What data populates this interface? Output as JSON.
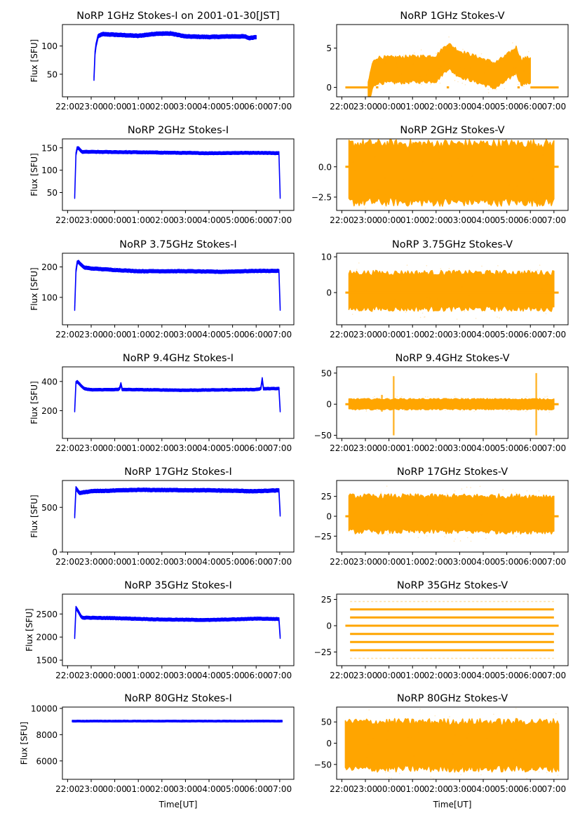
{
  "figure": {
    "title_suffix": "",
    "x_tick_labels": [
      "22:00",
      "23:00",
      "00:00",
      "01:00",
      "02:00",
      "03:00",
      "04:00",
      "05:00",
      "06:00",
      "07:00"
    ],
    "x_label": "Time[UT]",
    "y_label": "Flux [SFU]"
  },
  "chart_data": [
    {
      "id": "1ghz-i",
      "type": "scatter",
      "title": "NoRP 1GHz Stokes-I on 2001-01-30[JST]",
      "ylabel": "Flux [SFU]",
      "xlabel": "",
      "color": "#0000ff",
      "xlim_hours": [
        21.78,
        31.6
      ],
      "ylim": [
        10,
        138
      ],
      "yticks": [
        50,
        100
      ],
      "ytick_labels": [
        "50",
        "100"
      ],
      "trace": [
        [
          23.12,
          42
        ],
        [
          23.14,
          80
        ],
        [
          23.2,
          100
        ],
        [
          23.3,
          118
        ],
        [
          23.5,
          121
        ],
        [
          24,
          120
        ],
        [
          25,
          118
        ],
        [
          25.8,
          122
        ],
        [
          26.4,
          122
        ],
        [
          27,
          117
        ],
        [
          28,
          116
        ],
        [
          29,
          117
        ],
        [
          29.5,
          117
        ],
        [
          29.7,
          114
        ],
        [
          30,
          116
        ]
      ],
      "band": 3
    },
    {
      "id": "1ghz-v",
      "type": "scatter",
      "title": "NoRP 1GHz Stokes-V",
      "ylabel": "",
      "xlabel": "",
      "color": "#ffa500",
      "xlim_hours": [
        21.78,
        31.6
      ],
      "ylim": [
        -1.2,
        8
      ],
      "yticks": [
        0,
        5
      ],
      "ytick_labels": [
        "0",
        "5"
      ],
      "trace": [
        [
          23.12,
          -1
        ],
        [
          23.3,
          1.5
        ],
        [
          23.5,
          2.2
        ],
        [
          24,
          2.2
        ],
        [
          25,
          2.3
        ],
        [
          26,
          2.4
        ],
        [
          26.5,
          4
        ],
        [
          27,
          3
        ],
        [
          28,
          2
        ],
        [
          28.5,
          1.5
        ],
        [
          29,
          2.5
        ],
        [
          29.4,
          3.5
        ],
        [
          29.6,
          2
        ],
        [
          30,
          2.2
        ]
      ],
      "band": 1.6,
      "flat_segments": [
        [
          22.15,
          23.1,
          0
        ],
        [
          23.45,
          23.55,
          0
        ],
        [
          26.45,
          26.55,
          0
        ],
        [
          29.45,
          29.55,
          0
        ],
        [
          30,
          31.2,
          0
        ]
      ]
    },
    {
      "id": "2ghz-i",
      "type": "scatter",
      "title": "NoRP 2GHz Stokes-I",
      "ylabel": "Flux [SFU]",
      "xlabel": "",
      "color": "#0000ff",
      "xlim_hours": [
        21.78,
        31.6
      ],
      "ylim": [
        10,
        170
      ],
      "yticks": [
        50,
        100,
        150
      ],
      "ytick_labels": [
        "50",
        "100",
        "150"
      ],
      "trace": [
        [
          22.3,
          40
        ],
        [
          22.32,
          60
        ],
        [
          22.36,
          148
        ],
        [
          22.45,
          150
        ],
        [
          22.6,
          141
        ],
        [
          23,
          141
        ],
        [
          25,
          140
        ],
        [
          28,
          138
        ],
        [
          30,
          139
        ],
        [
          31,
          138
        ],
        [
          31.02,
          40
        ]
      ],
      "band": 3
    },
    {
      "id": "2ghz-v",
      "type": "scatter",
      "title": "NoRP 2GHz Stokes-V",
      "ylabel": "",
      "xlabel": "",
      "color": "#ffa500",
      "xlim_hours": [
        21.78,
        31.6
      ],
      "ylim": [
        -3.6,
        2.3
      ],
      "yticks": [
        -2.5,
        0.0
      ],
      "ytick_labels": [
        "−2.5",
        "0.0"
      ],
      "trace": [
        [
          22.3,
          -0.5
        ],
        [
          31,
          -0.5
        ]
      ],
      "band": 2.4,
      "flat_segments": [
        [
          22.15,
          31.2,
          0
        ]
      ]
    },
    {
      "id": "375ghz-i",
      "type": "scatter",
      "title": "NoRP 3.75GHz Stokes-I",
      "ylabel": "Flux [SFU]",
      "xlabel": "",
      "color": "#0000ff",
      "xlim_hours": [
        21.78,
        31.6
      ],
      "ylim": [
        10,
        245
      ],
      "yticks": [
        100,
        200
      ],
      "ytick_labels": [
        "100",
        "200"
      ],
      "trace": [
        [
          22.3,
          62
        ],
        [
          22.33,
          80
        ],
        [
          22.36,
          210
        ],
        [
          22.45,
          217
        ],
        [
          22.7,
          198
        ],
        [
          23,
          195
        ],
        [
          24,
          190
        ],
        [
          25,
          186
        ],
        [
          27,
          186
        ],
        [
          28.5,
          184
        ],
        [
          30,
          187
        ],
        [
          31,
          187
        ],
        [
          31.02,
          62
        ]
      ],
      "band": 5
    },
    {
      "id": "375ghz-v",
      "type": "scatter",
      "title": "NoRP 3.75GHz Stokes-V",
      "ylabel": "",
      "xlabel": "",
      "color": "#ffa500",
      "xlim_hours": [
        21.78,
        31.6
      ],
      "ylim": [
        -9,
        11
      ],
      "yticks": [
        0,
        10
      ],
      "ytick_labels": [
        "0",
        "10"
      ],
      "trace": [
        [
          22.3,
          0.5
        ],
        [
          31,
          0.5
        ]
      ],
      "band": 5,
      "flat_segments": [
        [
          22.15,
          31.2,
          0
        ]
      ]
    },
    {
      "id": "94ghz-i",
      "type": "scatter",
      "title": "NoRP 9.4GHz Stokes-I",
      "ylabel": "Flux [SFU]",
      "xlabel": "",
      "color": "#0000ff",
      "xlim_hours": [
        21.78,
        31.6
      ],
      "ylim": [
        10,
        500
      ],
      "yticks": [
        200,
        400
      ],
      "ytick_labels": [
        "200",
        "400"
      ],
      "trace": [
        [
          22.3,
          200
        ],
        [
          22.35,
          390
        ],
        [
          22.4,
          400
        ],
        [
          22.7,
          350
        ],
        [
          23,
          343
        ],
        [
          24.2,
          345
        ],
        [
          24.25,
          395
        ],
        [
          24.3,
          345
        ],
        [
          27,
          340
        ],
        [
          30,
          345
        ],
        [
          30.2,
          350
        ],
        [
          30.25,
          430
        ],
        [
          30.3,
          350
        ],
        [
          31,
          352
        ],
        [
          31.02,
          200
        ]
      ],
      "band": 8
    },
    {
      "id": "94ghz-v",
      "type": "scatter",
      "title": "NoRP 9.4GHz Stokes-V",
      "ylabel": "",
      "xlabel": "",
      "color": "#ffa500",
      "xlim_hours": [
        21.78,
        31.6
      ],
      "ylim": [
        -55,
        60
      ],
      "yticks": [
        -50,
        0,
        50
      ],
      "ytick_labels": [
        "−50",
        "0",
        "50"
      ],
      "trace": [
        [
          22.3,
          0
        ],
        [
          31,
          0
        ]
      ],
      "band": 8,
      "flat_segments": [
        [
          22.15,
          31.2,
          0
        ]
      ],
      "spikes": [
        [
          23.7,
          15,
          -12
        ],
        [
          24.2,
          45,
          -50
        ],
        [
          30.25,
          50,
          -50
        ]
      ]
    },
    {
      "id": "17ghz-i",
      "type": "scatter",
      "title": "NoRP 17GHz Stokes-I",
      "ylabel": "Flux [SFU]",
      "xlabel": "",
      "color": "#0000ff",
      "xlim_hours": [
        21.78,
        31.6
      ],
      "ylim": [
        0,
        800
      ],
      "yticks": [
        0,
        500
      ],
      "ytick_labels": [
        "0",
        "500"
      ],
      "trace": [
        [
          22.3,
          400
        ],
        [
          22.33,
          720
        ],
        [
          22.5,
          660
        ],
        [
          23,
          680
        ],
        [
          25,
          695
        ],
        [
          28,
          690
        ],
        [
          30,
          680
        ],
        [
          31,
          690
        ],
        [
          31.02,
          420
        ]
      ],
      "band": 18
    },
    {
      "id": "17ghz-v",
      "type": "scatter",
      "title": "NoRP 17GHz Stokes-V",
      "ylabel": "",
      "xlabel": "",
      "color": "#ffa500",
      "xlim_hours": [
        21.78,
        31.6
      ],
      "ylim": [
        -45,
        45
      ],
      "yticks": [
        -25,
        0,
        25
      ],
      "ytick_labels": [
        "−25",
        "0",
        "25"
      ],
      "trace": [
        [
          22.3,
          3
        ],
        [
          31,
          3
        ]
      ],
      "band": 22,
      "flat_segments": [
        [
          22.15,
          31.2,
          0
        ]
      ]
    },
    {
      "id": "35ghz-i",
      "type": "scatter",
      "title": "NoRP 35GHz Stokes-I",
      "ylabel": "Flux [SFU]",
      "xlabel": "",
      "color": "#0000ff",
      "xlim_hours": [
        21.78,
        31.6
      ],
      "ylim": [
        1380,
        2930
      ],
      "yticks": [
        1500,
        2000,
        2500
      ],
      "ytick_labels": [
        "1500",
        "2000",
        "2500"
      ],
      "trace": [
        [
          22.3,
          2000
        ],
        [
          22.33,
          2650
        ],
        [
          22.4,
          2600
        ],
        [
          22.6,
          2420
        ],
        [
          24,
          2410
        ],
        [
          26,
          2380
        ],
        [
          28,
          2370
        ],
        [
          29.5,
          2390
        ],
        [
          30,
          2400
        ],
        [
          31,
          2390
        ],
        [
          31.02,
          2000
        ]
      ],
      "band": 30
    },
    {
      "id": "35ghz-v",
      "type": "scatter",
      "title": "NoRP 35GHz Stokes-V",
      "ylabel": "",
      "xlabel": "",
      "color": "#ffa500",
      "xlim_hours": [
        21.78,
        31.6
      ],
      "ylim": [
        -38,
        30
      ],
      "yticks": [
        -25,
        0,
        25
      ],
      "ytick_labels": [
        "−25",
        "0",
        "25"
      ],
      "levels": [
        23,
        15.5,
        7.8,
        0,
        -7.8,
        -15.5,
        -23.3,
        -31
      ]
    },
    {
      "id": "80ghz-i",
      "type": "scatter",
      "title": "NoRP 80GHz Stokes-I",
      "ylabel": "Flux [SFU]",
      "xlabel": "Time[UT]",
      "color": "#0000ff",
      "xlim_hours": [
        21.78,
        31.6
      ],
      "ylim": [
        4600,
        10100
      ],
      "yticks": [
        6000,
        8000,
        10000
      ],
      "ytick_labels": [
        "6000",
        "8000",
        "10000"
      ],
      "trace": [
        [
          22.2,
          9030
        ],
        [
          31.1,
          9030
        ]
      ],
      "band": 60
    },
    {
      "id": "80ghz-v",
      "type": "scatter",
      "title": "NoRP 80GHz Stokes-V",
      "ylabel": "",
      "xlabel": "Time[UT]",
      "color": "#ffa500",
      "xlim_hours": [
        21.78,
        31.6
      ],
      "ylim": [
        -85,
        85
      ],
      "yticks": [
        -50,
        0,
        50
      ],
      "ytick_labels": [
        "−50",
        "0",
        "50"
      ],
      "trace": [
        [
          22.15,
          -5
        ],
        [
          31.2,
          -5
        ]
      ],
      "band": 55
    }
  ]
}
